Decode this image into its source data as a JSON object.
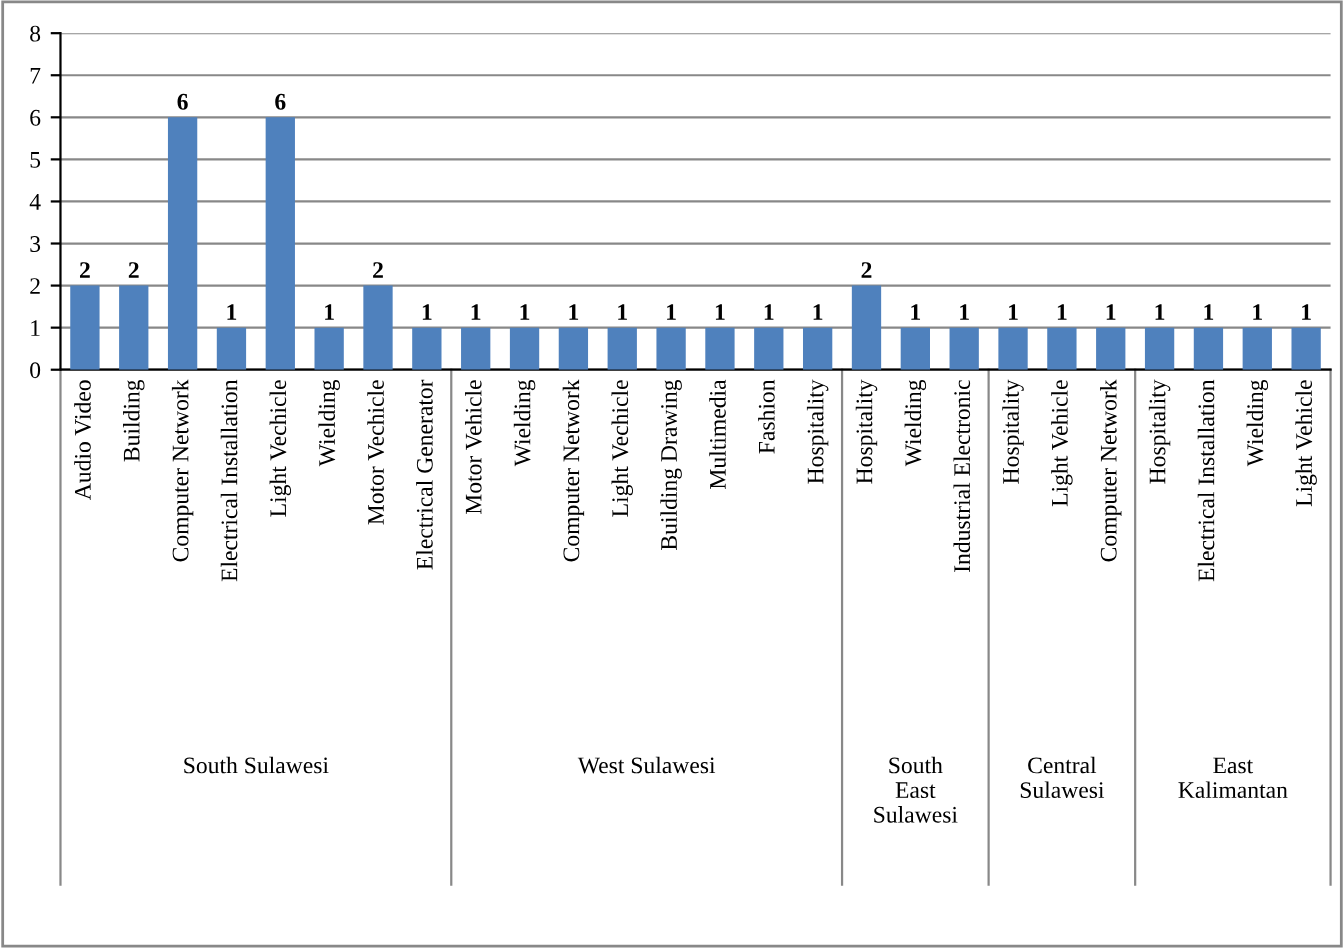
{
  "chart_data": {
    "type": "bar",
    "categories": [
      "Audio Video",
      "Building",
      "Computer Network",
      "Electrical Installation",
      "Light Vechicle",
      "Wielding",
      "Motor Vechicle",
      "Electrical Generator",
      "Motor Vehicle",
      "Wielding",
      "Computer Network",
      "Light Vechicle",
      "Building Drawing",
      "Multimedia",
      "Fashion",
      "Hospitality",
      "Hospitality",
      "Wielding",
      "Industrial Electronic",
      "Hospitality",
      "Light Vehicle",
      "Computer Network",
      "Hospitality",
      "Electrical Installation",
      "Wielding",
      "Light Vehicle"
    ],
    "values": [
      2,
      2,
      6,
      1,
      6,
      1,
      2,
      1,
      1,
      1,
      1,
      1,
      1,
      1,
      1,
      1,
      2,
      1,
      1,
      1,
      1,
      1,
      1,
      1,
      1,
      1
    ],
    "color": "#4f81bd",
    "annotations": [
      "South Sulawesi",
      "West Sulawesi",
      "South East Sulawesi",
      "Central Sulawesi",
      "East Kalimantan"
    ],
    "ylim": [
      0,
      8
    ],
    "yticks": [
      0,
      1,
      2,
      3,
      4,
      5,
      6,
      7,
      8
    ],
    "grid": "y",
    "data_labels": true
  }
}
